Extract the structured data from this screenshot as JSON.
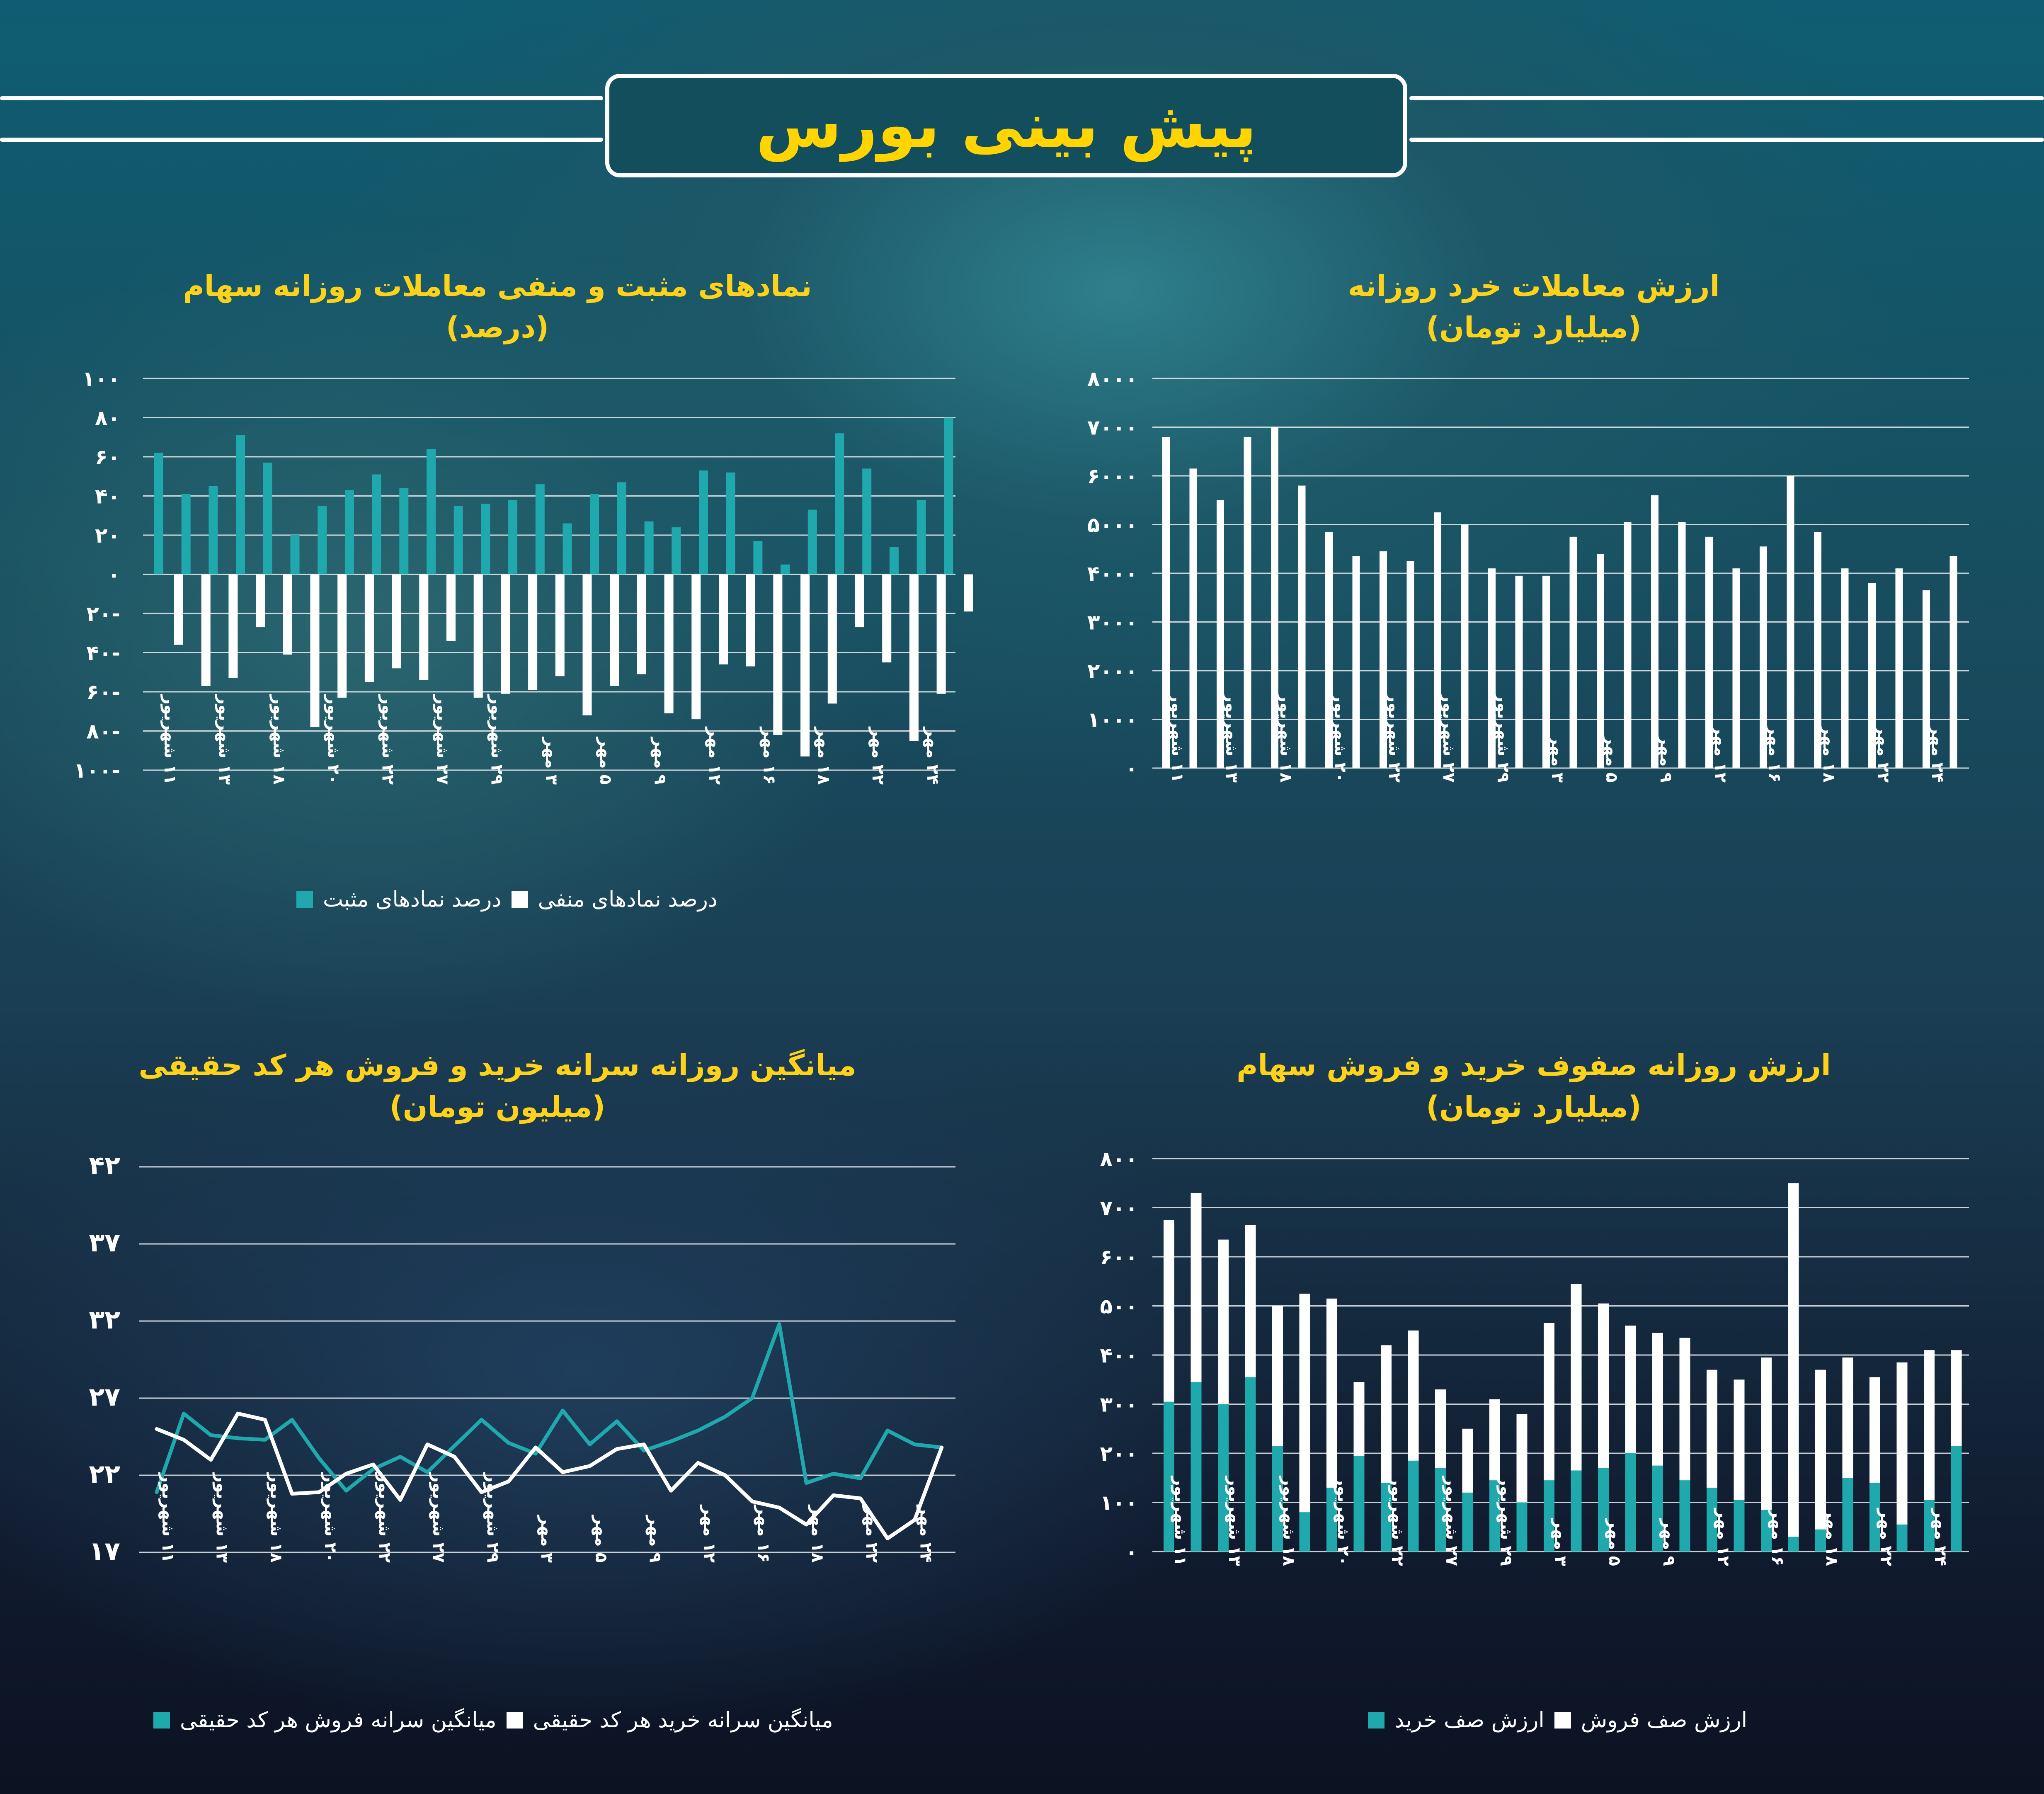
{
  "header": {
    "title": "پیش بینی بورس"
  },
  "colors": {
    "teal": "#1fa9ac",
    "white": "#ffffff",
    "title_yellow": "#ffd400"
  },
  "chart_data": [
    {
      "id": "retail_value",
      "type": "bar",
      "title": "ارزش معاملات خرد روزانه",
      "subtitle": "(میلیارد تومان)",
      "ylim": [
        0,
        8000
      ],
      "yticks": [
        "۰",
        "۱۰۰۰",
        "۲۰۰۰",
        "۳۰۰۰",
        "۴۰۰۰",
        "۵۰۰۰",
        "۶۰۰۰",
        "۷۰۰۰",
        "۸۰۰۰"
      ],
      "xticks": [
        "۱۱ شهریور",
        "۱۳ شهریور",
        "۱۸ شهریور",
        "۲۰ شهریور",
        "۲۲ شهریور",
        "۲۷ شهریور",
        "۲۹ شهریور",
        "۳ مهر",
        "۵ مهر",
        "۹ مهر",
        "۱۲ مهر",
        "۱۶ مهر",
        "۱۸ مهر",
        "۲۲ مهر",
        "۲۴ مهر"
      ],
      "series": [
        {
          "values": [
            6800,
            6150,
            5500,
            6800,
            7000,
            5800,
            4850,
            4350,
            4450,
            4250,
            5250,
            5000,
            4100,
            3950,
            3950,
            4750,
            4400,
            5050,
            5600,
            5050,
            4750,
            4100,
            4550,
            6000,
            4850,
            4100,
            3800,
            4100,
            3650,
            4350
          ]
        }
      ]
    },
    {
      "id": "pos_neg_symbols",
      "type": "bar",
      "title": "نمادهای مثبت و منفی معاملات روزانه سهام",
      "subtitle": "(درصد)",
      "ylim": [
        -100,
        100
      ],
      "yticks": [
        "۱۰۰-",
        "۸۰-",
        "۶۰-",
        "۴۰-",
        "۲۰-",
        "۰",
        "۲۰",
        "۴۰",
        "۶۰",
        "۸۰",
        "۱۰۰"
      ],
      "xticks": [
        "۱۱ شهریور",
        "۱۳ شهریور",
        "۱۸ شهریور",
        "۲۰ شهریور",
        "۲۲ شهریور",
        "۲۷ شهریور",
        "۲۹ شهریور",
        "۳ مهر",
        "۵ مهر",
        "۹ مهر",
        "۱۲ مهر",
        "۱۶ مهر",
        "۱۸ مهر",
        "۲۲ مهر",
        "۲۴ مهر"
      ],
      "series": [
        {
          "name": "درصد نمادهای مثبت",
          "values": [
            62,
            41,
            45,
            71,
            57,
            20,
            35,
            43,
            51,
            44,
            64,
            35,
            36,
            38,
            46,
            26,
            41,
            47,
            27,
            24,
            53,
            52,
            17,
            5,
            33,
            72,
            54,
            14,
            38,
            80
          ]
        },
        {
          "name": "درصد نمادهای منفی",
          "values": [
            -36,
            -57,
            -53,
            -27,
            -41,
            -78,
            -63,
            -55,
            -48,
            -54,
            -34,
            -63,
            -61,
            -59,
            -52,
            -72,
            -57,
            -51,
            -71,
            -74,
            -46,
            -47,
            -82,
            -93,
            -66,
            -27,
            -45,
            -85,
            -61,
            -19
          ]
        }
      ],
      "legend": {
        "negative": "درصد نمادهای منفی",
        "positive": "درصد نمادهای مثبت"
      }
    },
    {
      "id": "queue_value",
      "type": "bar",
      "title": "ارزش روزانه صفوف خرید و فروش سهام",
      "subtitle": "(میلیارد تومان)",
      "ylim": [
        0,
        800
      ],
      "yticks": [
        "۰",
        "۱۰۰",
        "۲۰۰",
        "۳۰۰",
        "۴۰۰",
        "۵۰۰",
        "۶۰۰",
        "۷۰۰",
        "۸۰۰"
      ],
      "xticks": [
        "۱۱ شهریور",
        "۱۳ شهریور",
        "۱۸ شهریور",
        "۲۰ شهریور",
        "۲۲ شهریور",
        "۲۷ شهریور",
        "۲۹ شهریور",
        "۳ مهر",
        "۵ مهر",
        "۹ مهر",
        "۱۲ مهر",
        "۱۶ مهر",
        "۱۸ مهر",
        "۲۲ مهر",
        "۲۴ مهر"
      ],
      "series": [
        {
          "name": "ارزش صف فروش",
          "values": [
            675,
            730,
            635,
            665,
            500,
            525,
            515,
            345,
            420,
            450,
            330,
            250,
            310,
            280,
            465,
            545,
            505,
            460,
            445,
            435,
            370,
            350,
            395,
            750,
            370,
            395,
            355,
            385,
            410,
            410
          ]
        },
        {
          "name": "ارزش صف خرید",
          "values": [
            305,
            345,
            300,
            355,
            215,
            80,
            130,
            195,
            140,
            185,
            170,
            120,
            145,
            100,
            145,
            165,
            170,
            200,
            175,
            145,
            130,
            105,
            85,
            30,
            45,
            150,
            140,
            55,
            105,
            215
          ]
        }
      ],
      "legend": {
        "sell": "ارزش صف فروش",
        "buy": "ارزش صف خرید"
      }
    },
    {
      "id": "per_capita",
      "type": "line",
      "title": "میانگین روزانه سرانه خرید و فروش هر کد حقیقی",
      "subtitle": "(میلیون تومان)",
      "ylim": [
        17,
        42
      ],
      "yticks": [
        "۱۷",
        "۲۲",
        "۲۷",
        "۳۲",
        "۳۷",
        "۴۲"
      ],
      "xticks": [
        "۱۱ شهریور",
        "۱۳ شهریور",
        "۱۸ شهریور",
        "۲۰ شهریور",
        "۲۲ شهریور",
        "۲۷ شهریور",
        "۲۹ شهریور",
        "۳ مهر",
        "۵ مهر",
        "۹ مهر",
        "۱۲ مهر",
        "۱۶ مهر",
        "۱۸ مهر",
        "۲۲ مهر",
        "۲۴ مهر"
      ],
      "series": [
        {
          "name": "میانگین سرانه فروش هر کد حقیقی",
          "values": [
            20.9,
            26.0,
            24.6,
            24.4,
            24.3,
            25.6,
            23.1,
            21.0,
            22.4,
            23.2,
            22.2,
            23.9,
            25.6,
            24.1,
            23.4,
            26.2,
            24.0,
            25.5,
            23.6,
            24.2,
            24.9,
            25.8,
            27.0,
            31.8,
            21.5,
            22.1,
            21.8,
            24.9,
            24.0,
            23.8
          ]
        },
        {
          "name": "میانگین سرانه خرید هر کد حقیقی",
          "values": [
            25.0,
            24.3,
            23.0,
            26.0,
            25.6,
            20.8,
            20.9,
            22.1,
            22.7,
            20.4,
            24.0,
            23.2,
            20.9,
            21.6,
            23.8,
            22.2,
            22.6,
            23.7,
            24.0,
            21.0,
            22.8,
            22.0,
            20.3,
            19.9,
            18.8,
            20.7,
            20.5,
            17.9,
            19.1,
            23.8
          ]
        }
      ],
      "legend": {
        "buy": "میانگین سرانه خرید هر کد حقیقی",
        "sell": "میانگین سرانه فروش هر کد حقیقی"
      }
    }
  ]
}
